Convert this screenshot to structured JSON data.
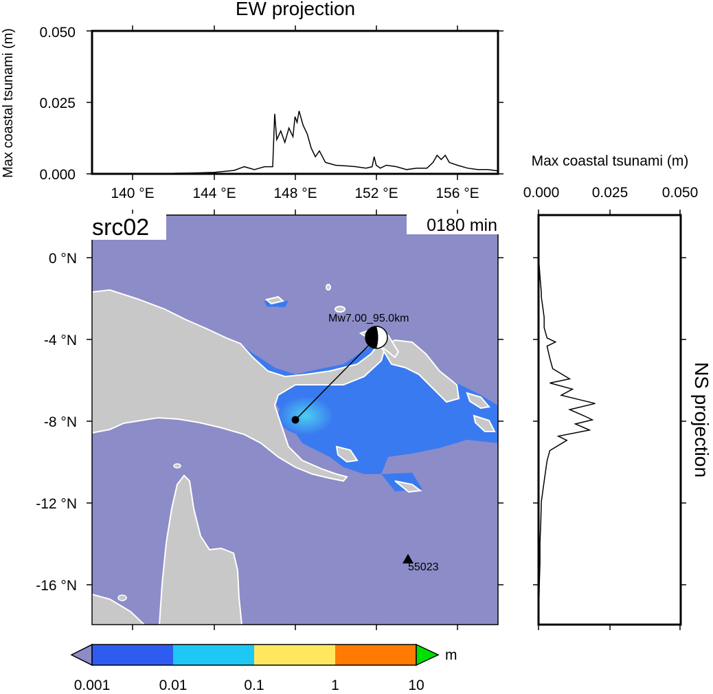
{
  "ew_panel": {
    "title": "EW projection",
    "ylabel": "Max coastal tsunami (m)",
    "yticks": [
      "0.000",
      "0.025",
      "0.050"
    ],
    "xticks": [
      "140 °E",
      "144 °E",
      "148 °E",
      "152 °E",
      "156 °E"
    ]
  },
  "ns_panel": {
    "title": "NS projection",
    "xlabel": "Max coastal tsunami (m)",
    "xticks": [
      "0.000",
      "0.025",
      "0.050"
    ]
  },
  "map": {
    "source_label": "src02",
    "time_label": "0180 min",
    "yticks": [
      "0 °N",
      "-4 °N",
      "-8 °N",
      "-12 °N",
      "-16 °N"
    ],
    "event_label": "Mw7.00_95.0km",
    "station_label": "55023",
    "colors": {
      "ocean": "#8c8cc8",
      "land": "#c8c8c8",
      "coast": "#ffffff",
      "tsunami_low": "#3a7af0",
      "tsunami_high": "#4bd0f0"
    }
  },
  "colorbar": {
    "unit": "m",
    "ticks": [
      "0.001",
      "0.01",
      "0.1",
      "1",
      "10"
    ],
    "stops": [
      "#2f5cf0",
      "#1ec8f5",
      "#c8fff6",
      "#ffd030",
      "#f00000"
    ],
    "under_color": "#8c8cc8",
    "over_color": "#00e000"
  },
  "chart_data": [
    {
      "type": "line",
      "title": "EW projection",
      "xlabel": "",
      "ylabel": "Max coastal tsunami (m)",
      "xlim": [
        138,
        158
      ],
      "ylim": [
        0,
        0.05
      ],
      "x": [
        138,
        140,
        142,
        143,
        144,
        145,
        145.5,
        146,
        146.5,
        146.9,
        147.0,
        147.1,
        147.3,
        147.5,
        147.7,
        147.9,
        148.0,
        148.1,
        148.2,
        148.4,
        148.6,
        148.8,
        149.0,
        149.2,
        149.5,
        150,
        150.5,
        151,
        151.5,
        151.8,
        151.9,
        152.0,
        152.2,
        152.5,
        153,
        153.5,
        154,
        154.5,
        154.8,
        155,
        155.2,
        155.4,
        155.6,
        156,
        156.5,
        157,
        157.5,
        158
      ],
      "y": [
        0,
        0.0001,
        0.0002,
        0.0003,
        0.0005,
        0.0012,
        0.0025,
        0.0015,
        0.0025,
        0.0025,
        0.021,
        0.012,
        0.015,
        0.011,
        0.016,
        0.013,
        0.02,
        0.018,
        0.022,
        0.017,
        0.014,
        0.009,
        0.006,
        0.008,
        0.004,
        0.003,
        0.0028,
        0.0025,
        0.002,
        0.0025,
        0.006,
        0.003,
        0.002,
        0.003,
        0.0025,
        0.0015,
        0.002,
        0.002,
        0.004,
        0.0065,
        0.005,
        0.0065,
        0.004,
        0.003,
        0.002,
        0.0015,
        0.0015,
        0.001
      ]
    },
    {
      "type": "line",
      "title": "NS projection",
      "xlabel": "Max coastal tsunami (m)",
      "ylabel": "",
      "xlim": [
        0,
        0.05
      ],
      "ylim": [
        -18,
        2
      ],
      "y": [
        2,
        0,
        -1,
        -1.8,
        -2,
        -2.5,
        -3,
        -3.5,
        -4,
        -4.2,
        -4.4,
        -5,
        -5.5,
        -6,
        -6.2,
        -6.5,
        -6.8,
        -7,
        -7.2,
        -7.5,
        -7.8,
        -8,
        -8.2,
        -8.5,
        -8.8,
        -9,
        -9.5,
        -10,
        -11,
        -12,
        -13,
        -14,
        -15,
        -16,
        -18
      ],
      "x": [
        0,
        0,
        0.0005,
        0.001,
        0.001,
        0.0015,
        0.002,
        0.002,
        0.003,
        0.006,
        0.003,
        0.004,
        0.005,
        0.011,
        0.004,
        0.012,
        0.008,
        0.014,
        0.02,
        0.011,
        0.016,
        0.019,
        0.013,
        0.018,
        0.007,
        0.01,
        0.004,
        0.003,
        0.002,
        0.001,
        0.0008,
        0.0005,
        0.0005,
        0.0003,
        0
      ]
    }
  ]
}
